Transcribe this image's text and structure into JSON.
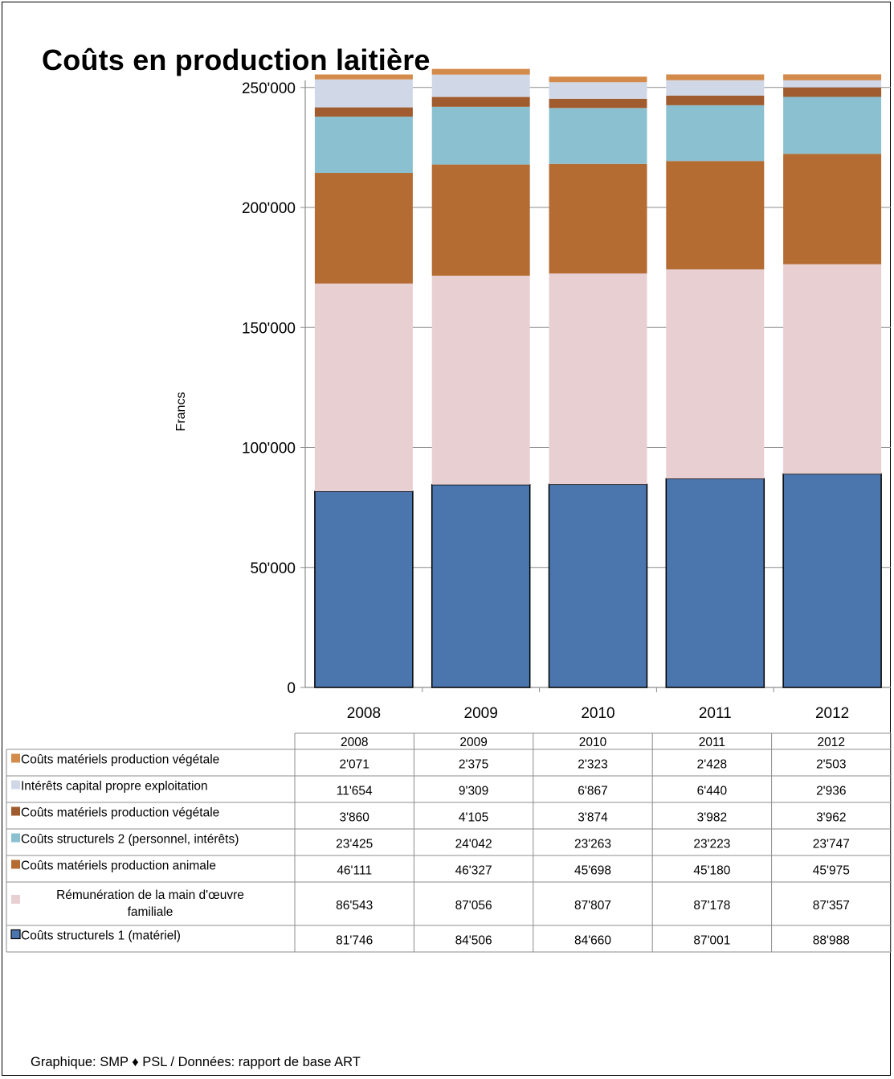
{
  "chart_data": {
    "type": "bar",
    "stacked": true,
    "title": "Coûts en production laitière",
    "ylabel": "Francs",
    "xlabel": "",
    "categories": [
      "2008",
      "2009",
      "2010",
      "2011",
      "2012"
    ],
    "ylim": [
      0,
      250000
    ],
    "yticks": [
      0,
      50000,
      100000,
      150000,
      200000,
      250000
    ],
    "ytick_labels": [
      "0",
      "50'000",
      "100'000",
      "150'000",
      "200'000",
      "250'000"
    ],
    "grid": true,
    "legend_placement": "data-table-below",
    "series": [
      {
        "name": "Coûts structurels 1 (matériel)",
        "color": "#4a76ad",
        "values": [
          81746,
          84506,
          84660,
          87001,
          88988
        ],
        "labels": [
          "81'746",
          "84'506",
          "84'660",
          "87'001",
          "88'988"
        ]
      },
      {
        "name": "Rémunération de la main d'œuvre familiale",
        "color": "#e8cfd2",
        "values": [
          86543,
          87056,
          87807,
          87178,
          87357
        ],
        "labels": [
          "86'543",
          "87'056",
          "87'807",
          "87'178",
          "87'357"
        ]
      },
      {
        "name": "Coûts matériels production animale",
        "color": "#b46c33",
        "values": [
          46111,
          46327,
          45698,
          45180,
          45975
        ],
        "labels": [
          "46'111",
          "46'327",
          "45'698",
          "45'180",
          "45'975"
        ]
      },
      {
        "name": "Coûts structurels 2 (personnel, intérêts)",
        "color": "#8bc0d1",
        "values": [
          23425,
          24042,
          23263,
          23223,
          23747
        ],
        "labels": [
          "23'425",
          "24'042",
          "23'263",
          "23'223",
          "23'747"
        ]
      },
      {
        "name": "Coûts matériels production végétale",
        "color": "#a05c2e",
        "values": [
          3860,
          4105,
          3874,
          3982,
          3962
        ],
        "labels": [
          "3'860",
          "4'105",
          "3'874",
          "3'982",
          "3'962"
        ]
      },
      {
        "name": "Intérêts capital propre exploitation",
        "color": "#d0d8e8",
        "values": [
          11654,
          9309,
          6867,
          6440,
          2936
        ],
        "labels": [
          "11'654",
          "9'309",
          "6'867",
          "6'440",
          "2'936"
        ]
      },
      {
        "name": "Coûts matériels production végétale",
        "color": "#d38b4c",
        "values": [
          2071,
          2375,
          2323,
          2428,
          2503
        ],
        "labels": [
          "2'071",
          "2'375",
          "2'323",
          "2'428",
          "2'503"
        ]
      }
    ]
  },
  "footer": "Graphique: SMP ♦ PSL / Données: rapport de base ART"
}
